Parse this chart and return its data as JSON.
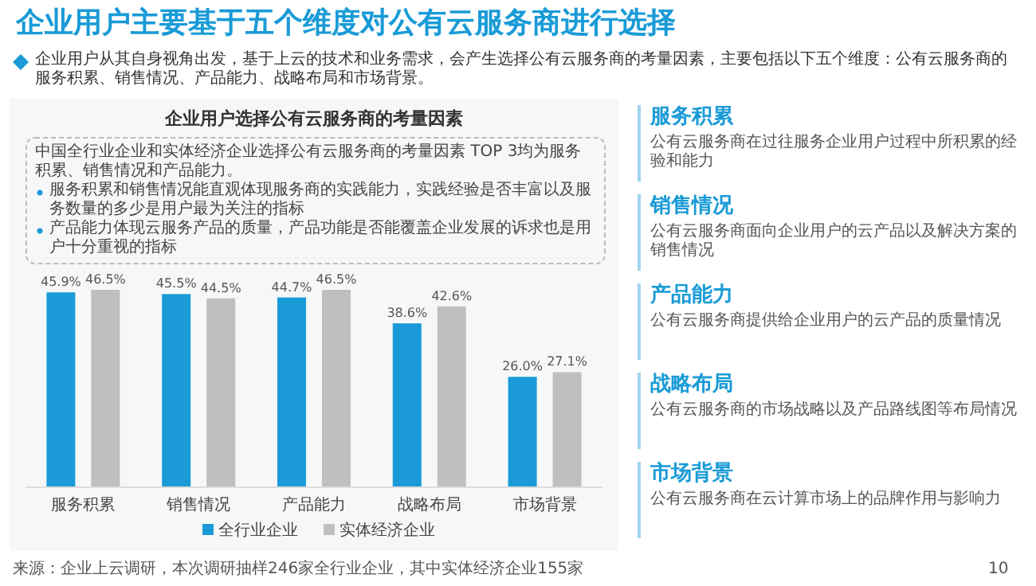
{
  "chart_data": {
    "type": "bar",
    "title": "企业用户主要基于五个维度对公有云服务商进行选择",
    "subtitle": "企业用户选择公有云服务商的考量因素",
    "categories": [
      "服务积累",
      "销售情况",
      "产品能力",
      "战略布局",
      "市场背景"
    ],
    "series": [
      {
        "name": "全行业企业",
        "color": "#1a9bd7",
        "values": [
          45.9,
          45.5,
          44.7,
          38.6,
          26.0
        ],
        "value_labels": [
          "45.9%",
          "45.5%",
          "44.7%",
          "38.6%",
          "26.0%"
        ]
      },
      {
        "name": "实体经济企业",
        "color": "#bfbfbf",
        "values": [
          46.5,
          44.5,
          46.5,
          42.6,
          27.1
        ],
        "value_labels": [
          "46.5%",
          "44.5%",
          "46.5%",
          "42.6%",
          "27.1%"
        ]
      }
    ],
    "legend": "bottom",
    "annotations": [
      "企业用户从其自身视角出发，基于上云的技术和业务需求，会产生选择公有云服务商的考量因素，主要包括以下五个维度：公有云服务商的服务积累、销售情况、产品能力、战略布局和市场背景。",
      "中国全行业企业和实体经济企业选择公有云服务商的考量因素 TOP 3均为服务积累、销售情况和产品能力。",
      "服务积累和销售情况能直观体现服务商的实践能力，实践经验是否丰富以及服务数量的多少是用户最为关注的指标",
      "产品能力体现云服务产品的质量，产品功能是否能覆盖企业发展的诉求也是用户十分重视的指标",
      "服务积累",
      "公有云服务商在过往服务企业用户过程中所积累的经验和能力",
      "销售情况",
      "公有云服务商面向企业用户的云产品以及解决方案的销售情况",
      "产品能力",
      "公有云服务商提供给企业用户的云产品的质量情况",
      "战略布局",
      "公有云服务商的市场战略以及产品路线图等布局情况",
      "市场背景",
      "公有云服务商在云计算市场上的品牌作用与影响力",
      "来源：企业上云调研，本次调研抽样246家全行业企业，其中实体经济企业155家",
      "10"
    ]
  }
}
